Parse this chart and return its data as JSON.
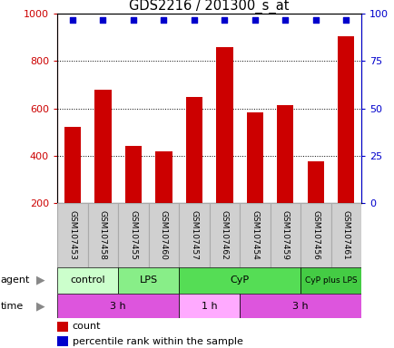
{
  "title": "GDS2216 / 201300_s_at",
  "samples": [
    "GSM107453",
    "GSM107458",
    "GSM107455",
    "GSM107460",
    "GSM107457",
    "GSM107462",
    "GSM107454",
    "GSM107459",
    "GSM107456",
    "GSM107461"
  ],
  "counts": [
    520,
    680,
    440,
    420,
    650,
    860,
    585,
    615,
    375,
    905
  ],
  "percentile_ranks": [
    97,
    97,
    97,
    97,
    97,
    97,
    97,
    97,
    97,
    97
  ],
  "ylim_left": [
    200,
    1000
  ],
  "yticks_left": [
    200,
    400,
    600,
    800,
    1000
  ],
  "ylim_right": [
    0,
    100
  ],
  "yticks_right": [
    0,
    25,
    50,
    75,
    100
  ],
  "bar_color": "#cc0000",
  "dot_color": "#0000cc",
  "agent_groups": [
    {
      "label": "control",
      "start": 0,
      "end": 2,
      "color": "#ccffcc"
    },
    {
      "label": "LPS",
      "start": 2,
      "end": 4,
      "color": "#88ee88"
    },
    {
      "label": "CyP",
      "start": 4,
      "end": 8,
      "color": "#55dd55"
    },
    {
      "label": "CyP plus LPS",
      "start": 8,
      "end": 10,
      "color": "#44cc44"
    }
  ],
  "time_groups": [
    {
      "label": "3 h",
      "start": 0,
      "end": 4,
      "color": "#dd55dd"
    },
    {
      "label": "1 h",
      "start": 4,
      "end": 6,
      "color": "#ffaaff"
    },
    {
      "label": "3 h",
      "start": 6,
      "end": 10,
      "color": "#dd55dd"
    }
  ],
  "legend_count_label": "count",
  "legend_pct_label": "percentile rank within the sample",
  "left_axis_color": "#cc0000",
  "right_axis_color": "#0000cc",
  "grid_color": "#000000",
  "sample_box_color": "#d0d0d0",
  "sample_box_edge": "#aaaaaa"
}
